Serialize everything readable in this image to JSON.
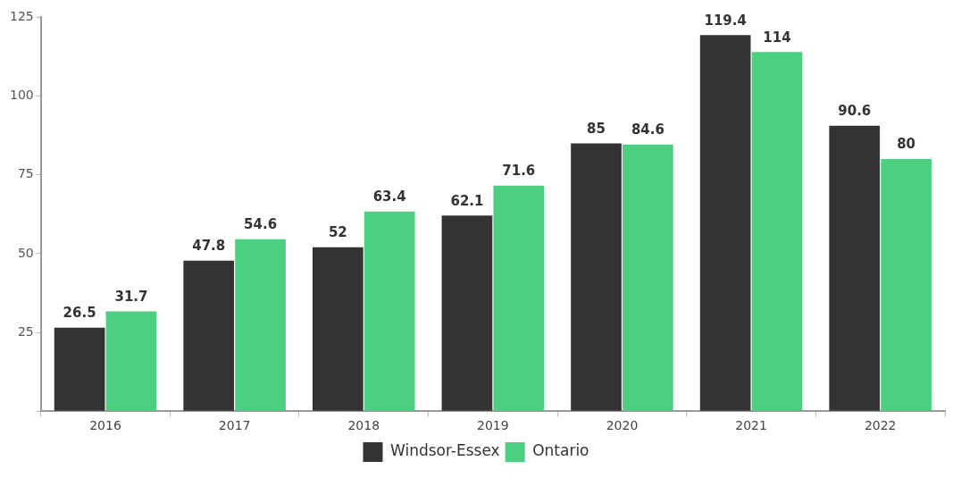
{
  "chart_data": {
    "type": "bar",
    "categories": [
      "2016",
      "2017",
      "2018",
      "2019",
      "2020",
      "2021",
      "2022"
    ],
    "series": [
      {
        "name": "Windsor-Essex",
        "color": "#333333",
        "values": [
          26.5,
          47.8,
          52,
          62.1,
          85,
          119.4,
          90.6
        ]
      },
      {
        "name": "Ontario",
        "color": "#4ccf80",
        "values": [
          31.7,
          54.6,
          63.4,
          71.6,
          84.6,
          114,
          80
        ]
      }
    ],
    "ylim": [
      0,
      125
    ],
    "yticks": [
      {
        "value": 0,
        "label": null
      },
      25,
      50,
      75,
      100,
      125
    ],
    "grid": false,
    "legend": "bottom",
    "data_labels": true
  }
}
